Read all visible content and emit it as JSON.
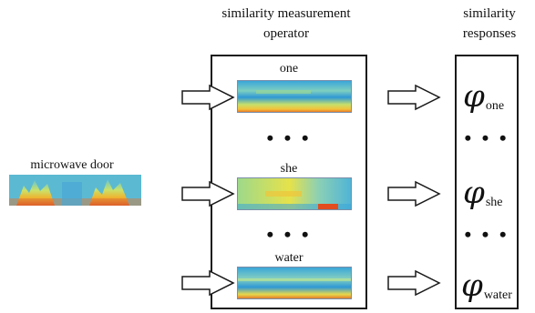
{
  "header": {
    "operator_title_line1": "similarity measurement",
    "operator_title_line2": "operator",
    "responses_title_line1": "similarity",
    "responses_title_line2": "responses"
  },
  "input": {
    "label": "microwave door"
  },
  "operators": [
    {
      "word": "one"
    },
    {
      "word": "she"
    },
    {
      "word": "water"
    }
  ],
  "responses": [
    {
      "symbol": "φ",
      "subscript": "one"
    },
    {
      "symbol": "φ",
      "subscript": "she"
    },
    {
      "symbol": "φ",
      "subscript": "water"
    }
  ],
  "ellipsis": "• • •",
  "colors": {
    "line": "#1a1a1a",
    "spec_low": "#1f8fd6",
    "spec_mid": "#f2e43a",
    "spec_high": "#e0421c"
  }
}
